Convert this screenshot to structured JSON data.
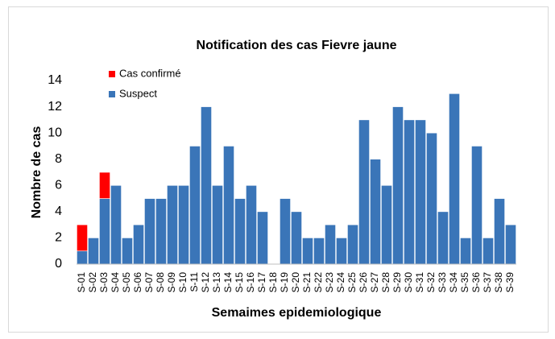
{
  "chart_data": {
    "type": "stacked_bar",
    "title": "Notification des cas Fievre jaune",
    "x_label": "Semaimes epidemiologique",
    "y_label": "Nombre de cas",
    "categories": [
      "S-01",
      "S-02",
      "S-03",
      "S-04",
      "S-05",
      "S-06",
      "S-07",
      "S-08",
      "S-09",
      "S-10",
      "S-11",
      "S-12",
      "S-13",
      "S-14",
      "S-15",
      "S-16",
      "S-17",
      "S-18",
      "S-19",
      "S-20",
      "S-21",
      "S-22",
      "S-23",
      "S-24",
      "S-25",
      "S-26",
      "S-27",
      "S-28",
      "S-29",
      "S-30",
      "S-31",
      "S-32",
      "S-33",
      "S-34",
      "S-35",
      "S-36",
      "S-37",
      "S-38",
      "S-39"
    ],
    "series": [
      {
        "name": "Suspect",
        "color": "#3a75b8",
        "values": [
          1,
          2,
          5,
          6,
          2,
          3,
          5,
          5,
          6,
          6,
          9,
          12,
          6,
          9,
          5,
          6,
          4,
          0,
          5,
          4,
          2,
          2,
          3,
          2,
          3,
          11,
          8,
          6,
          12,
          11,
          11,
          10,
          4,
          13,
          2,
          9,
          2,
          5,
          3
        ]
      },
      {
        "name": "Cas confirmé",
        "color": "#ff0000",
        "values": [
          2,
          0,
          2,
          0,
          0,
          0,
          0,
          0,
          0,
          0,
          0,
          0,
          0,
          0,
          0,
          0,
          0,
          0,
          0,
          0,
          0,
          0,
          0,
          0,
          0,
          0,
          0,
          0,
          0,
          0,
          0,
          0,
          0,
          0,
          0,
          0,
          0,
          0,
          0
        ]
      }
    ],
    "ylim": [
      0,
      14
    ],
    "yticks": [
      0,
      2,
      4,
      6,
      8,
      10,
      12,
      14
    ],
    "grid": false,
    "legend": "top-left"
  }
}
